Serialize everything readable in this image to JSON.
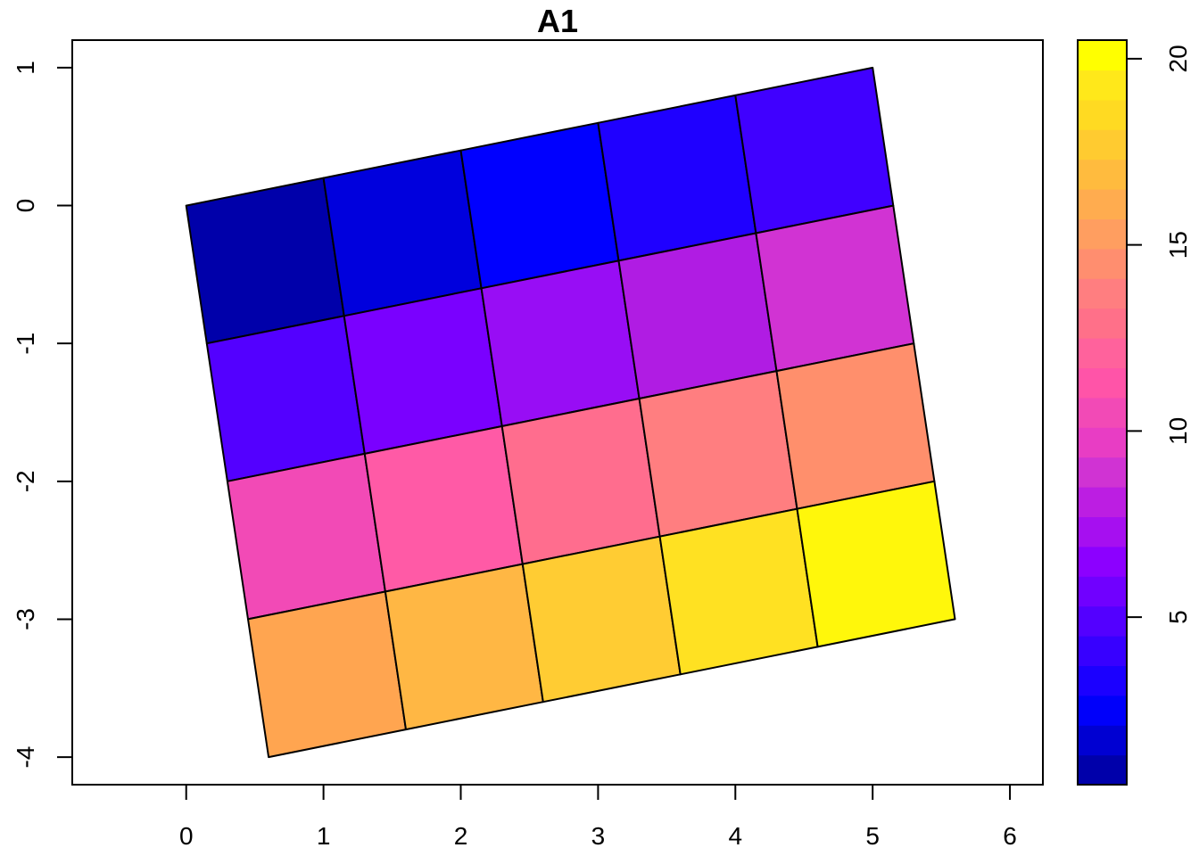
{
  "chart_data": {
    "type": "heatmap",
    "title": "A1",
    "xlabel": "",
    "ylabel": "",
    "xlim": [
      -0.83,
      6.24
    ],
    "ylim": [
      -4.2,
      1.2
    ],
    "x_ticks": [
      0,
      1,
      2,
      3,
      4,
      5,
      6
    ],
    "y_ticks": [
      -4,
      -3,
      -2,
      -1,
      0,
      1
    ],
    "x_tick_labels": [
      "0",
      "1",
      "2",
      "3",
      "4",
      "5",
      "6"
    ],
    "y_tick_labels": [
      "-4",
      "-3",
      "-2",
      "-1",
      "0",
      "1"
    ],
    "grid": false,
    "raster": {
      "nrow": 4,
      "ncol": 5,
      "origin": [
        0,
        0
      ],
      "col_step": [
        1,
        0.2
      ],
      "row_step": [
        0.15,
        -1
      ],
      "values": [
        [
          1,
          2,
          3,
          4,
          5
        ],
        [
          6,
          7,
          8,
          9,
          10
        ],
        [
          11,
          12,
          13,
          14,
          15
        ],
        [
          16,
          17,
          18,
          19,
          20
        ]
      ]
    },
    "colorbar": {
      "min": 0.5,
      "max": 20.5,
      "ticks": [
        5,
        10,
        15,
        20
      ],
      "tick_labels": [
        "5",
        "10",
        "15",
        "20"
      ],
      "position": "right",
      "colors": [
        "#0000AA",
        "#0000D2",
        "#0000FA",
        "#1B00FF",
        "#3700FF",
        "#5300FF",
        "#7000FF",
        "#8C00FF",
        "#A60FF0",
        "#BC1EE2",
        "#D033D3",
        "#E83DC4",
        "#F24AB6",
        "#FF54A8",
        "#FF629C",
        "#FF7089",
        "#FF7E80",
        "#FF8E6F",
        "#FF9E60",
        "#FFAC4F",
        "#FFBB3E",
        "#FFCB30",
        "#FFDA22",
        "#FFE81A",
        "#FFFF00"
      ]
    },
    "cell_colors": [
      [
        "#0000AA",
        "#0000DD",
        "#0000FF",
        "#1F00FF",
        "#4000FF"
      ],
      [
        "#5300FF",
        "#7A00FF",
        "#980DF5",
        "#B01CE3",
        "#D133D3"
      ],
      [
        "#F24AB6",
        "#FF5AA6",
        "#FF6D8E",
        "#FF7E80",
        "#FF8F6C"
      ],
      [
        "#FFA550",
        "#FFB744",
        "#FFCC33",
        "#FFE122",
        "#FFF70B"
      ]
    ]
  }
}
